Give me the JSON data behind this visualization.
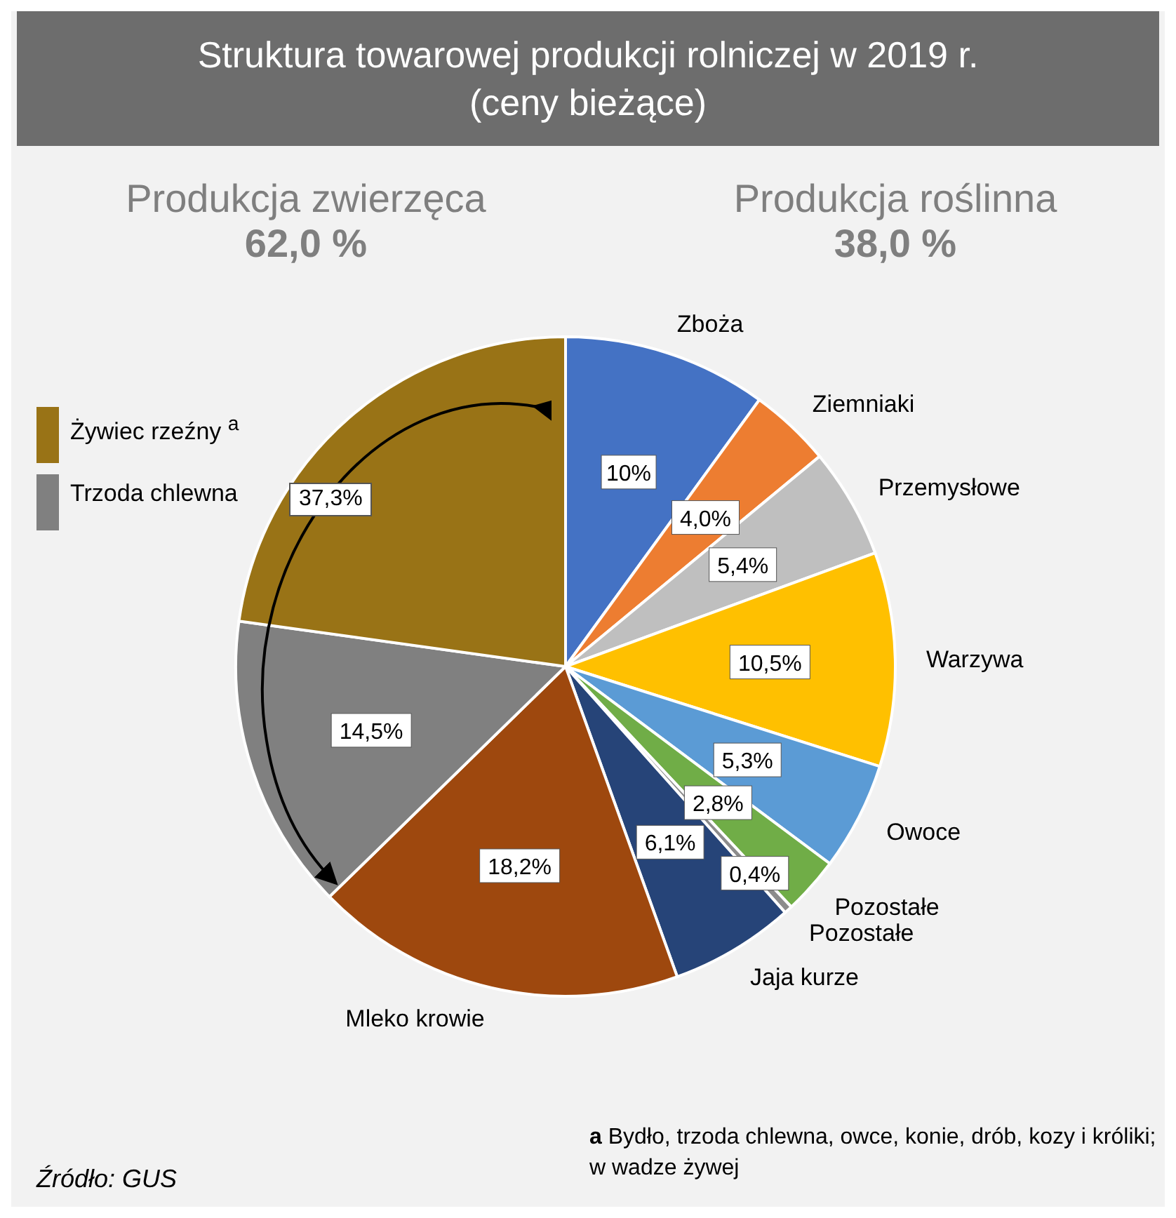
{
  "chart_data": {
    "type": "pie",
    "title": "Struktura towarowej produkcji rolniczej w 2019 r.",
    "subtitle": "(ceny bieżące)",
    "categories": [
      "Zboża",
      "Ziemniaki",
      "Przemysłowe",
      "Warzywa",
      "Owoce",
      "Pozostałe",
      "Pozostałe",
      "Jaja kurze",
      "Mleko krowie",
      "Trzoda chlewna",
      "Żywiec rzeźny $^{a}$"
    ],
    "values": [
      10,
      4.0,
      5.4,
      10.5,
      5.3,
      2.8,
      0.4,
      6.1,
      18.2,
      14.5,
      22.8
    ],
    "value_labels": [
      "10%",
      "4,0%",
      "5,4%",
      "10,5%",
      "5,3%",
      "2,8%",
      "0,4%",
      "6,1%",
      "18,2%",
      "14,5%",
      null
    ],
    "colors": [
      "#4472c4",
      "#ed7d31",
      "#bfbfbf",
      "#ffc000",
      "#5b9bd5",
      "#70ad47",
      "#8c8c8c",
      "#264478",
      "#9e480e",
      "#808080",
      "#997316"
    ],
    "legend": "left",
    "annotations": [
      "Produkcja zwierzęca",
      "62,0 %",
      "Produkcja roślinna",
      "38,0 %",
      "a Bydło, trzoda chlewna, owce, konie, drób, kozy i króliki; w wadze żywej",
      "Źródło: GUS",
      "37,3%"
    ]
  }
}
